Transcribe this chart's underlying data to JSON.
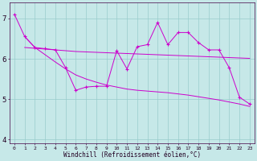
{
  "xlabel": "Windchill (Refroidissement éolien,°C)",
  "background_color": "#c6e8e8",
  "grid_color": "#99cccc",
  "line_color": "#cc00cc",
  "x_values": [
    0,
    1,
    2,
    3,
    4,
    5,
    6,
    7,
    8,
    9,
    10,
    11,
    12,
    13,
    14,
    15,
    16,
    17,
    18,
    19,
    20,
    21,
    22,
    23
  ],
  "line_jagged": [
    7.1,
    6.55,
    6.28,
    6.25,
    6.22,
    5.78,
    5.22,
    5.3,
    5.32,
    5.32,
    6.2,
    5.75,
    6.3,
    6.35,
    6.9,
    6.35,
    6.65,
    6.65,
    6.4,
    6.22,
    6.22,
    5.78,
    5.05,
    4.88
  ],
  "line_flat": [
    null,
    6.28,
    6.26,
    6.24,
    6.22,
    6.2,
    6.18,
    6.17,
    6.16,
    6.15,
    6.14,
    6.13,
    6.12,
    6.11,
    6.1,
    6.09,
    6.08,
    6.07,
    6.06,
    6.05,
    6.04,
    6.03,
    6.02,
    6.01
  ],
  "line_diag": [
    null,
    6.55,
    6.28,
    6.1,
    5.92,
    5.75,
    5.6,
    5.5,
    5.42,
    5.35,
    5.3,
    5.25,
    5.22,
    5.2,
    5.18,
    5.16,
    5.13,
    5.1,
    5.06,
    5.02,
    4.98,
    4.93,
    4.88,
    4.82
  ],
  "ylim": [
    3.9,
    7.4
  ],
  "yticks": [
    4,
    5,
    6,
    7
  ],
  "xlim": [
    -0.5,
    23.5
  ],
  "figsize": [
    3.2,
    2.0
  ],
  "dpi": 100
}
